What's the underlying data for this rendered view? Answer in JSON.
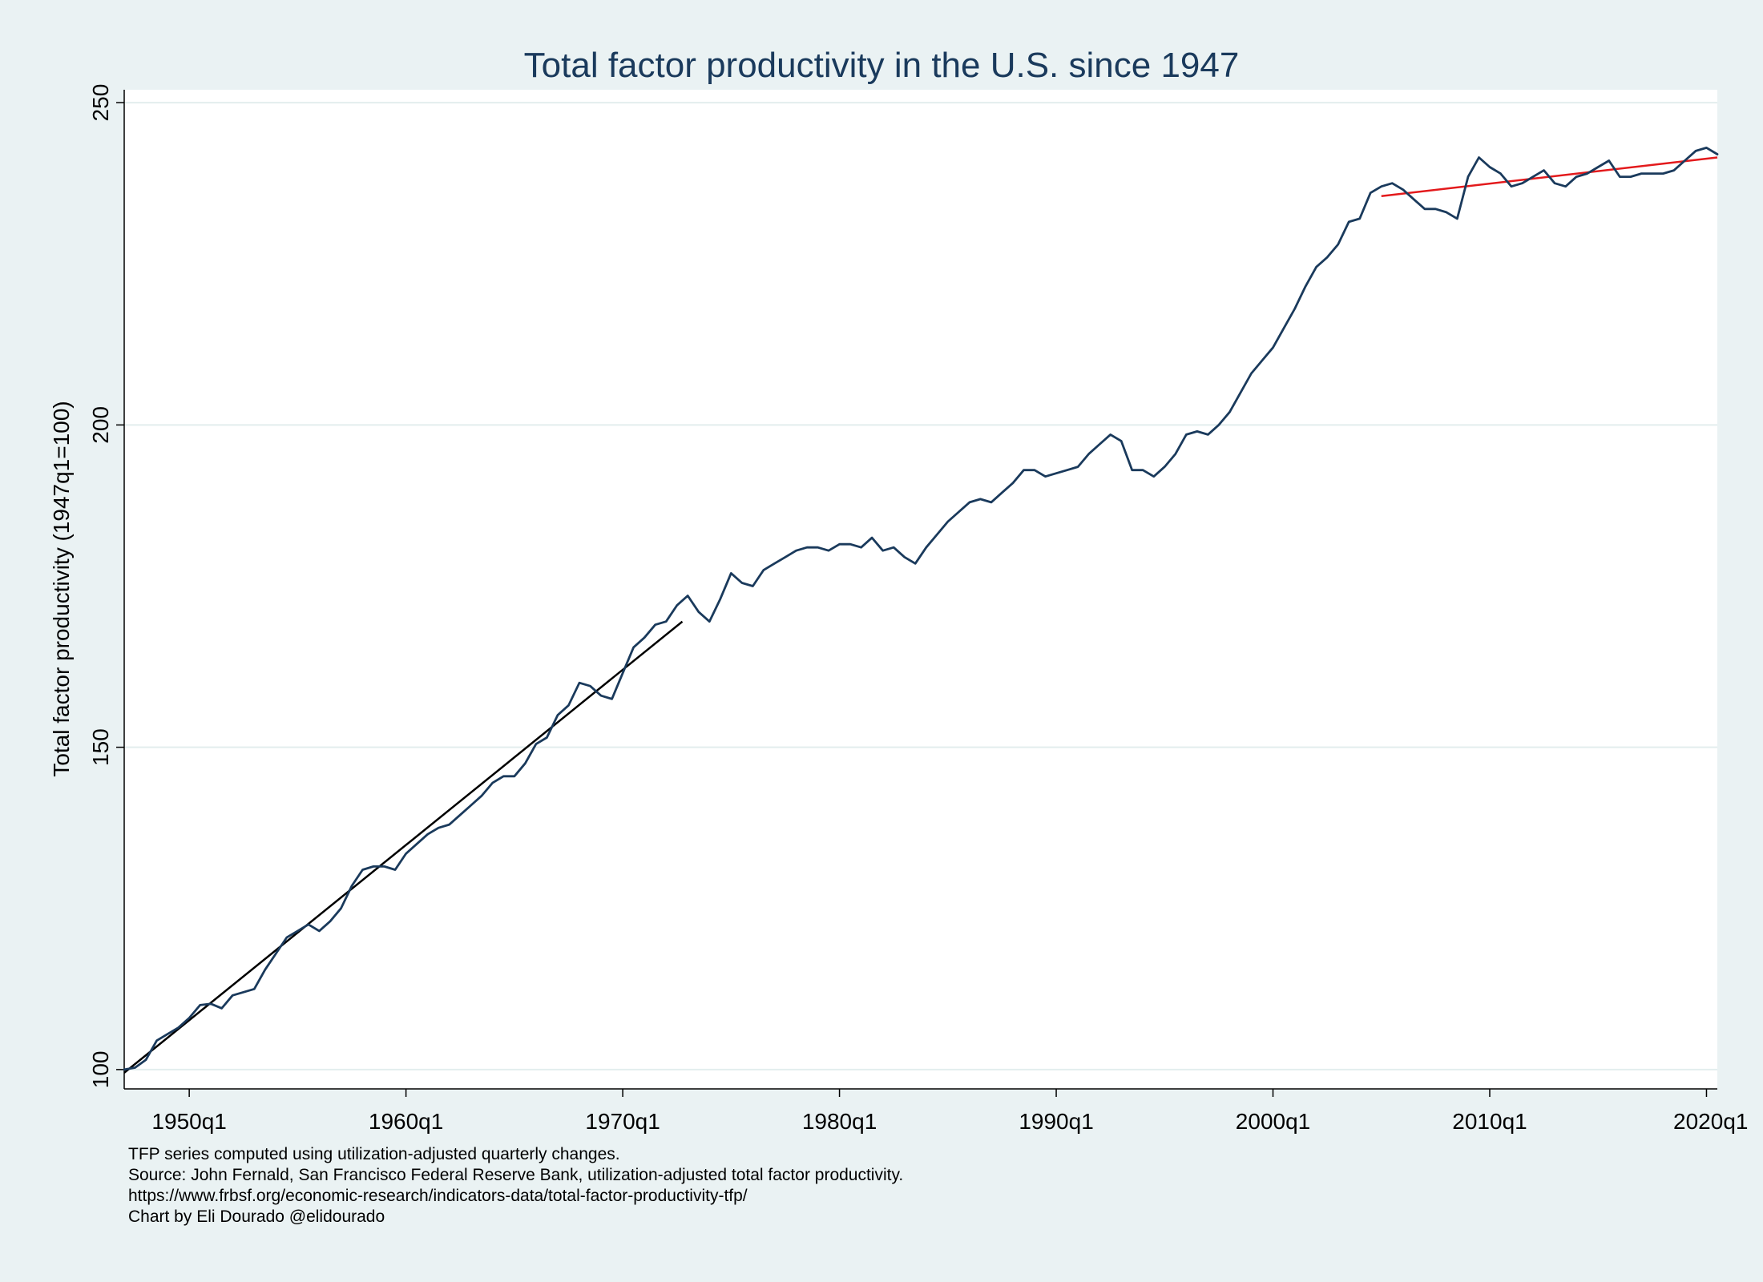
{
  "chart_data": {
    "type": "line",
    "title": "Total factor productivity in the U.S. since 1947",
    "ylabel": "Total factor productivity (1947q1=100)",
    "xlabel": "",
    "xlim": [
      1947.0,
      2020.5
    ],
    "ylim": [
      97,
      252
    ],
    "x_ticks": [
      {
        "value": 1950.0,
        "label": "1950q1"
      },
      {
        "value": 1960.0,
        "label": "1960q1"
      },
      {
        "value": 1970.0,
        "label": "1970q1"
      },
      {
        "value": 1980.0,
        "label": "1980q1"
      },
      {
        "value": 1990.0,
        "label": "1990q1"
      },
      {
        "value": 2000.0,
        "label": "2000q1"
      },
      {
        "value": 2010.0,
        "label": "2010q1"
      },
      {
        "value": 2020.0,
        "label": "2020q1"
      }
    ],
    "y_ticks": [
      {
        "value": 100,
        "label": "100"
      },
      {
        "value": 150,
        "label": "150"
      },
      {
        "value": 200,
        "label": "200"
      },
      {
        "value": 250,
        "label": "250"
      }
    ],
    "grid": "horizontal",
    "series": [
      {
        "color": "#1a3a5c",
        "x": [
          1947.0,
          1947.5,
          1948.0,
          1948.5,
          1949.0,
          1949.5,
          1950.0,
          1950.5,
          1951.0,
          1951.5,
          1952.0,
          1952.5,
          1953.0,
          1953.5,
          1954.0,
          1954.5,
          1955.0,
          1955.5,
          1956.0,
          1956.5,
          1957.0,
          1957.5,
          1958.0,
          1958.5,
          1959.0,
          1959.5,
          1960.0,
          1960.5,
          1961.0,
          1961.5,
          1962.0,
          1962.5,
          1963.0,
          1963.5,
          1964.0,
          1964.5,
          1965.0,
          1965.5,
          1966.0,
          1966.5,
          1967.0,
          1967.5,
          1968.0,
          1968.5,
          1969.0,
          1969.5,
          1970.0,
          1970.5,
          1971.0,
          1971.5,
          1972.0,
          1972.5,
          1973.0,
          1973.5,
          1974.0,
          1974.5,
          1975.0,
          1975.5,
          1976.0,
          1976.5,
          1977.0,
          1977.5,
          1978.0,
          1978.5,
          1979.0,
          1979.5,
          1980.0,
          1980.5,
          1981.0,
          1981.5,
          1982.0,
          1982.5,
          1983.0,
          1983.5,
          1984.0,
          1984.5,
          1985.0,
          1985.5,
          1986.0,
          1986.5,
          1987.0,
          1987.5,
          1988.0,
          1988.5,
          1989.0,
          1989.5,
          1990.0,
          1990.5,
          1991.0,
          1991.5,
          1992.0,
          1992.5,
          1993.0,
          1993.5,
          1994.0,
          1994.5,
          1995.0,
          1995.5,
          1996.0,
          1996.5,
          1997.0,
          1997.5,
          1998.0,
          1998.5,
          1999.0,
          1999.5,
          2000.0,
          2000.5,
          2001.0,
          2001.5,
          2002.0,
          2002.5,
          2003.0,
          2003.5,
          2004.0,
          2004.5,
          2005.0,
          2005.5,
          2006.0,
          2006.5,
          2007.0,
          2007.5,
          2008.0,
          2008.5,
          2009.0,
          2009.5,
          2010.0,
          2010.5,
          2011.0,
          2011.5,
          2012.0,
          2012.5,
          2013.0,
          2013.5,
          2014.0,
          2014.5,
          2015.0,
          2015.5,
          2016.0,
          2016.5,
          2017.0,
          2017.5,
          2018.0,
          2018.5,
          2019.0,
          2019.5,
          2020.0,
          2020.5
        ],
        "y": [
          100.0,
          100.3,
          101.5,
          104.5,
          105.5,
          106.5,
          108.0,
          110.0,
          110.2,
          109.5,
          111.5,
          112.0,
          112.5,
          115.5,
          118.0,
          120.5,
          121.5,
          122.5,
          121.5,
          123.0,
          125.0,
          128.5,
          131.0,
          131.5,
          131.5,
          131.0,
          133.5,
          135.0,
          136.5,
          137.5,
          138.0,
          139.5,
          141.0,
          142.5,
          144.5,
          145.5,
          145.5,
          147.5,
          150.5,
          151.5,
          155.0,
          156.5,
          160.0,
          159.5,
          158.0,
          157.5,
          161.5,
          165.5,
          167.0,
          169.0,
          169.5,
          172.0,
          173.5,
          171.0,
          169.5,
          173.0,
          177.0,
          175.5,
          175.0,
          177.5,
          178.5,
          179.5,
          180.5,
          181.0,
          181.0,
          180.5,
          181.5,
          181.5,
          181.0,
          182.5,
          180.5,
          181.0,
          179.5,
          178.5,
          181.0,
          183.0,
          185.0,
          186.5,
          188.0,
          188.5,
          188.0,
          189.5,
          191.0,
          193.0,
          193.0,
          192.0,
          192.5,
          193.0,
          193.5,
          195.5,
          197.0,
          198.5,
          197.5,
          193.0,
          193.0,
          192.0,
          193.5,
          195.5,
          198.5,
          199.0,
          198.5,
          200.0,
          202.0,
          205.0,
          208.0,
          210.0,
          212.0,
          215.0,
          218.0,
          221.5,
          224.5,
          226.0,
          228.0,
          231.5,
          232.0,
          236.0,
          237.0,
          237.5,
          236.5,
          235.0,
          233.5,
          233.5,
          233.0,
          232.0,
          238.5,
          241.5,
          240.0,
          239.0,
          237.0,
          237.5,
          238.5,
          239.5,
          237.5,
          237.0,
          238.5,
          239.0,
          240.0,
          241.0,
          238.5,
          238.5,
          239.0,
          239.0,
          239.0,
          239.5,
          241.0,
          242.5,
          243.0,
          242.0
        ]
      }
    ],
    "trend_lines": [
      {
        "color": "#000000",
        "x": [
          1947.0,
          1972.75
        ],
        "y": [
          99.5,
          169.5
        ]
      },
      {
        "color": "#e31a1c",
        "x": [
          2005.0,
          2020.5
        ],
        "y": [
          235.5,
          241.5
        ]
      }
    ],
    "notes": [
      "TFP series computed using utilization-adjusted quarterly changes.",
      "Source: John Fernald, San Francisco Federal Reserve Bank, utilization-adjusted total factor productivity.",
      "https://www.frbsf.org/economic-research/indicators-data/total-factor-productivity-tfp/",
      "Chart by Eli Dourado @elidourado"
    ]
  }
}
